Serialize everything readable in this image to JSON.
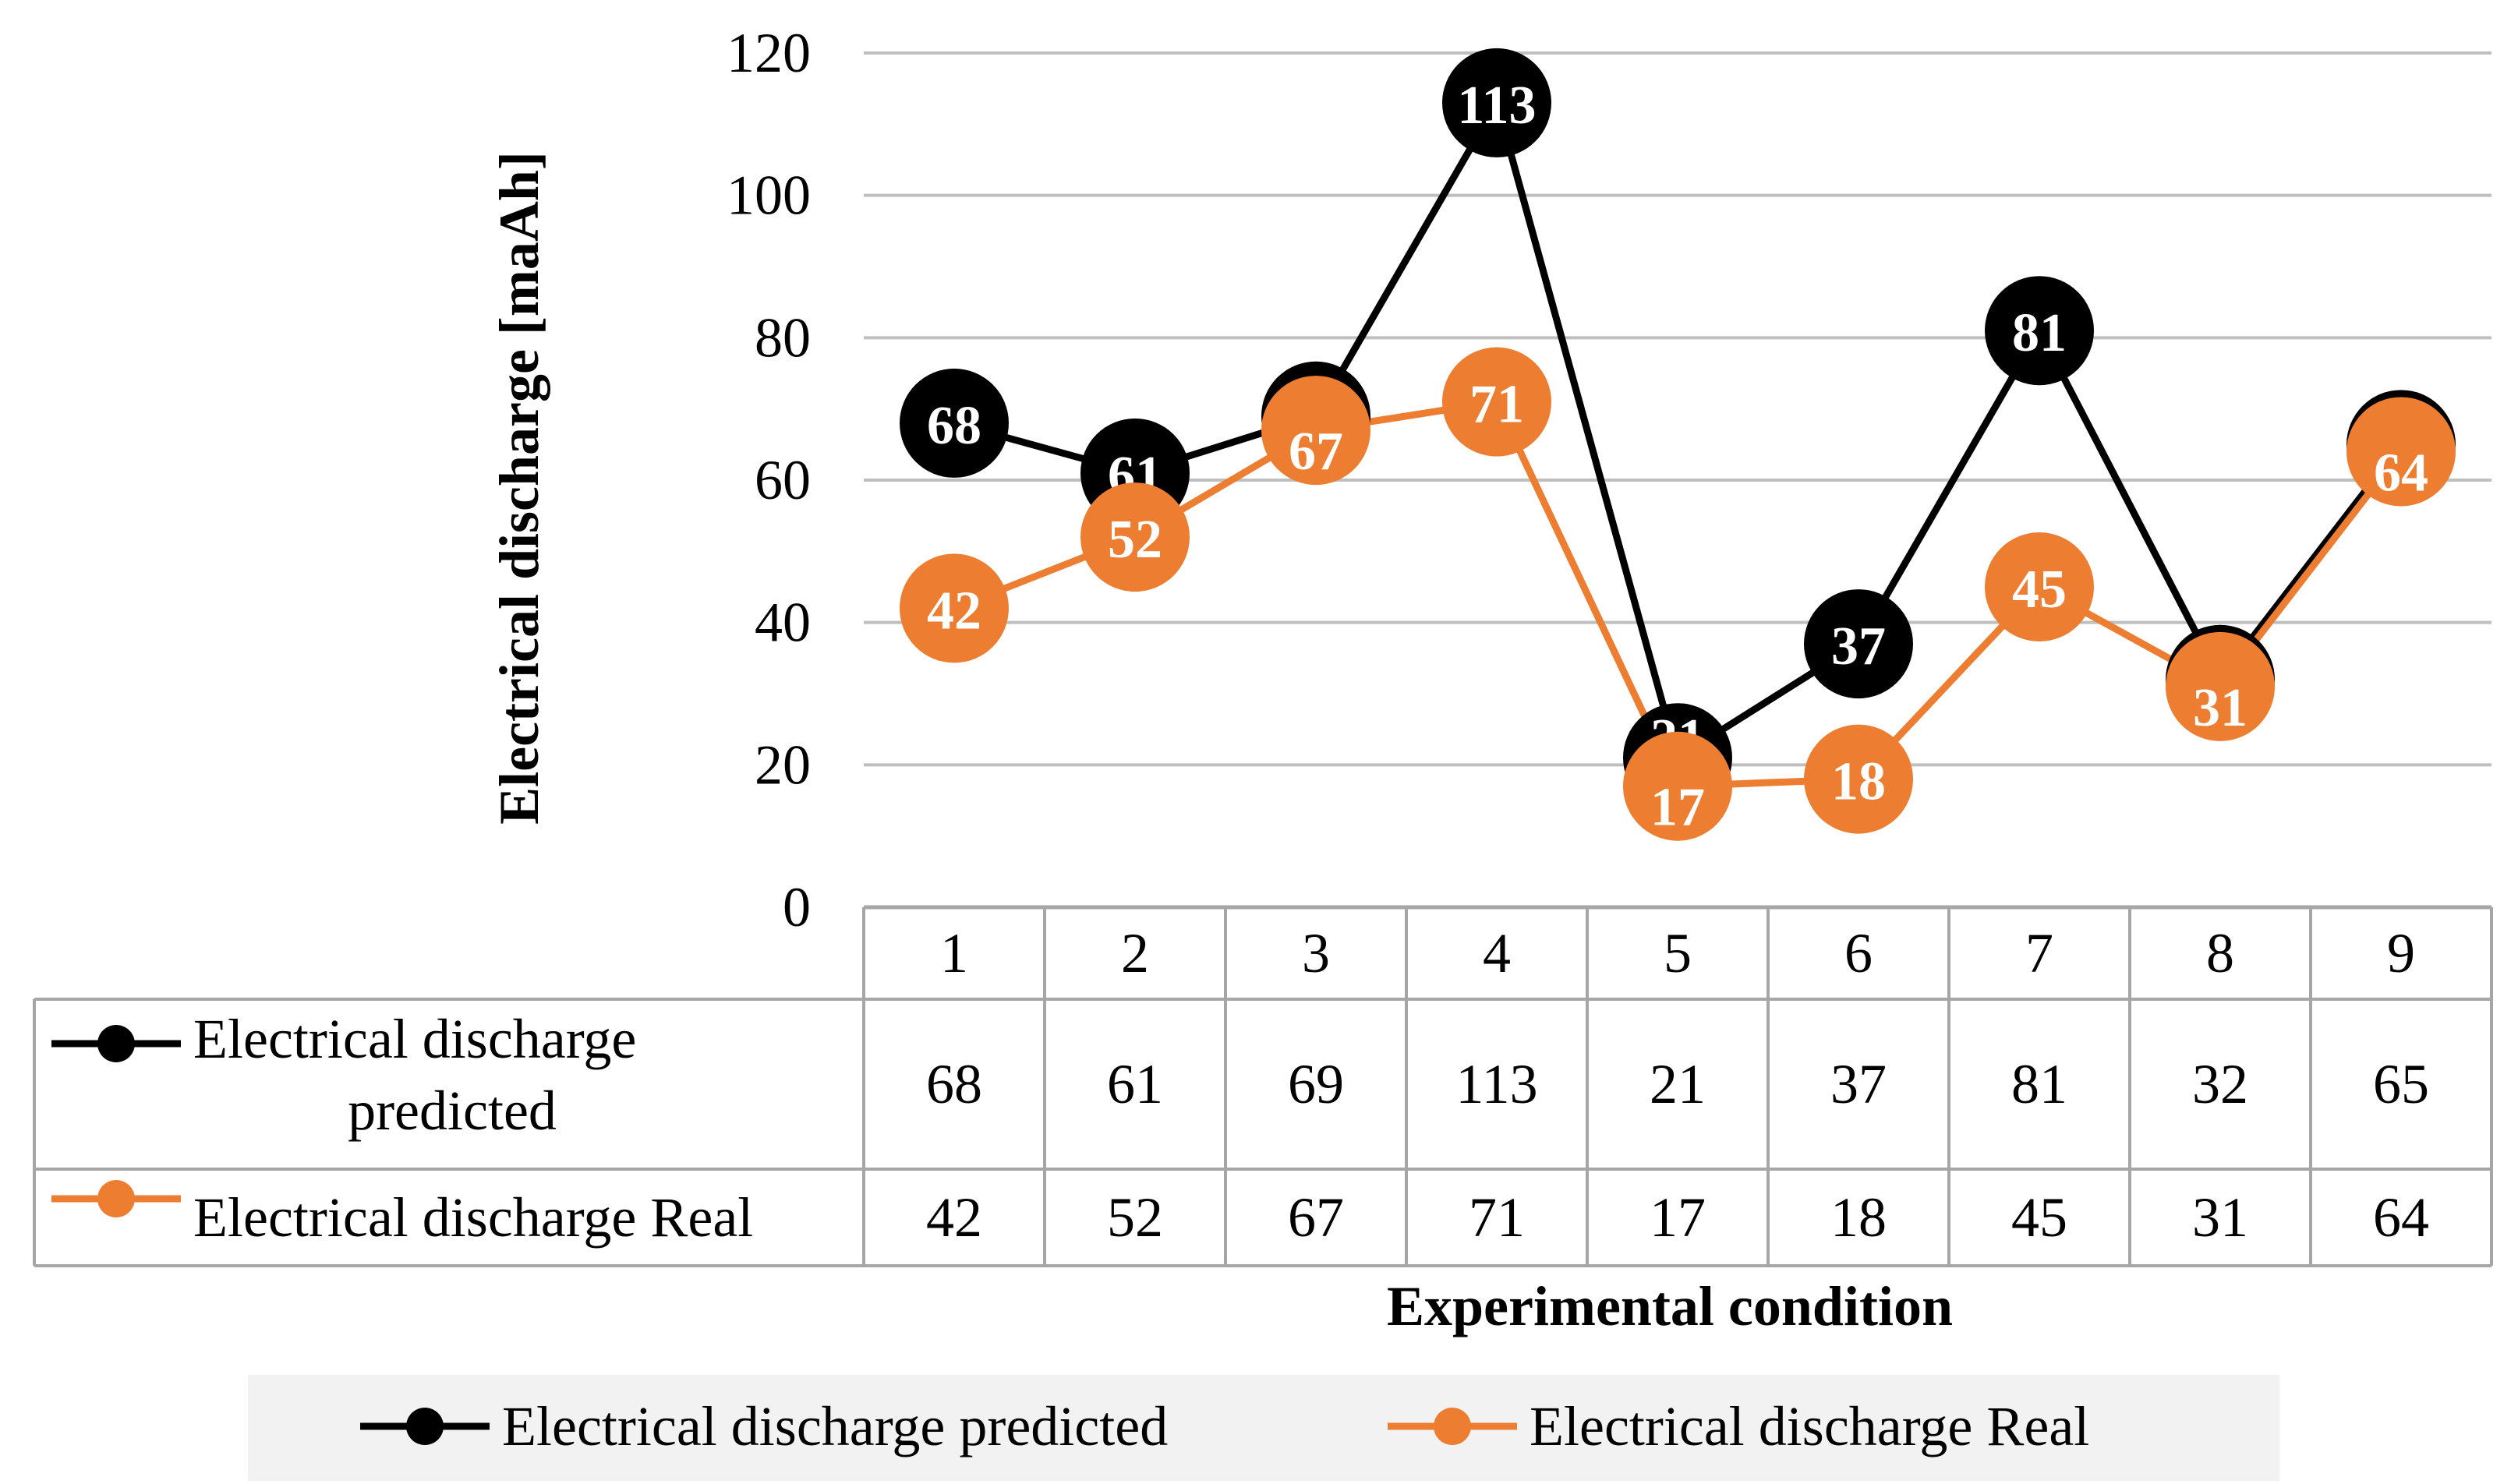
{
  "chart_data": {
    "type": "line",
    "xlabel": "Experimental condition",
    "ylabel": "Electrical discharge [maAh]",
    "ylim": [
      0,
      120
    ],
    "yticks": [
      0,
      20,
      40,
      60,
      80,
      100,
      120
    ],
    "categories": [
      "1",
      "2",
      "3",
      "4",
      "5",
      "6",
      "7",
      "8",
      "9"
    ],
    "grid": true,
    "legend_position": "bottom",
    "data_table": true,
    "series": [
      {
        "name": "Electrical discharge predicted",
        "table_label_lines": [
          "Electrical discharge",
          "predicted"
        ],
        "color": "#000000",
        "values": [
          68,
          61,
          69,
          113,
          21,
          37,
          81,
          32,
          65
        ]
      },
      {
        "name": "Electrical discharge Real",
        "table_label_lines": [
          "Electrical discharge Real"
        ],
        "color": "#ED7D31",
        "values": [
          42,
          52,
          67,
          71,
          17,
          18,
          45,
          31,
          64
        ]
      }
    ]
  }
}
